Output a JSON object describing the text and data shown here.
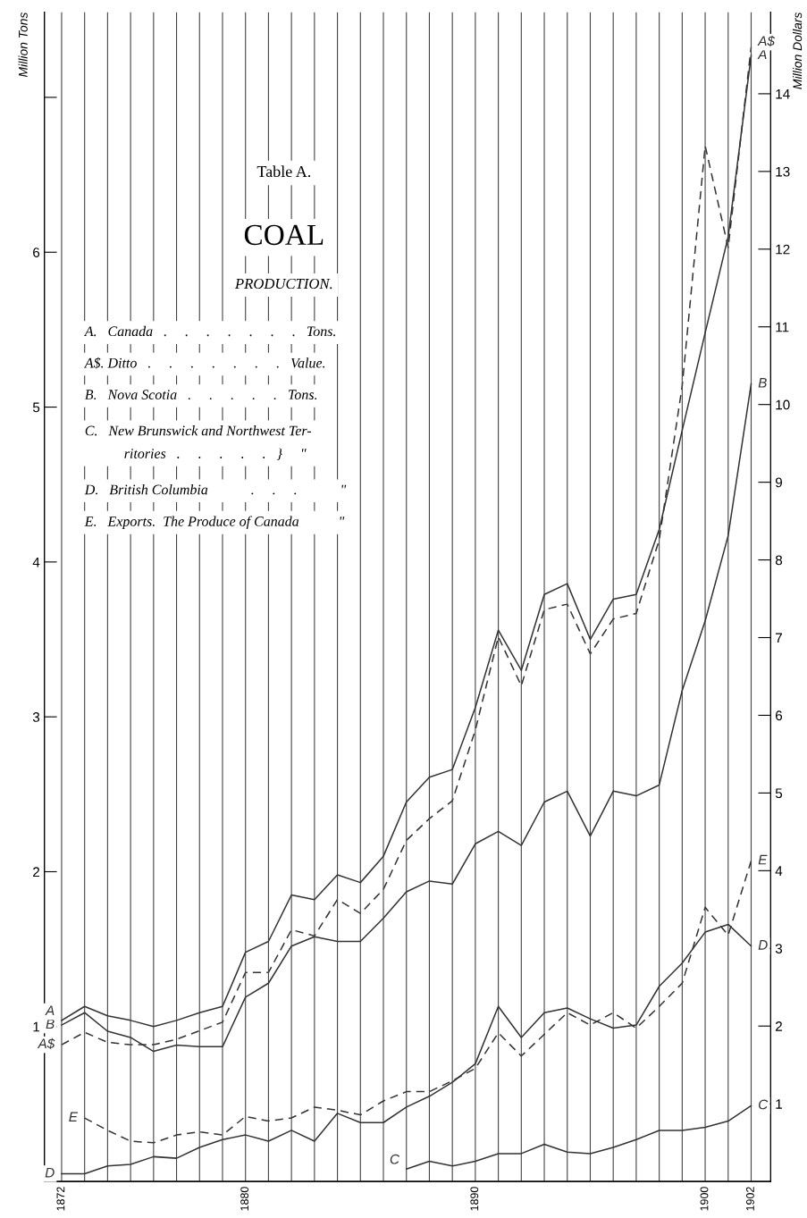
{
  "chart_data": {
    "type": "line",
    "title": "COAL",
    "subtitle": "PRODUCTION.",
    "ylabel": "Million Tons",
    "y2label": "Million Dollars",
    "annotations": [
      "Table A.",
      "A.   Canada   .     .     .     .     .     .     .   Tons.",
      "A$. Ditto   .     .     .     .     .     .     .   Value.",
      "B.   Nova Scotia   .     .     .     .     .   Tons.",
      "C.   New Brunswick and Northwest Ter-\n           ritories   .     .     .     .     .   }     \"",
      "D.   British Columbia            .     .     .            \"",
      "E.   Exports.  The Produce of Canada           \""
    ],
    "x": [
      1872,
      1873,
      1874,
      1875,
      1876,
      1877,
      1878,
      1879,
      1880,
      1881,
      1882,
      1883,
      1884,
      1885,
      1886,
      1887,
      1888,
      1889,
      1890,
      1891,
      1892,
      1893,
      1894,
      1895,
      1896,
      1897,
      1898,
      1899,
      1900,
      1901,
      1902
    ],
    "xlim": [
      1871.25,
      1902.85
    ],
    "xticks": [
      1872,
      {
        "value": 1873,
        "label": null
      },
      {
        "value": 1874,
        "label": null
      },
      {
        "value": 1875,
        "label": null
      },
      {
        "value": 1876,
        "label": null
      },
      {
        "value": 1877,
        "label": null
      },
      {
        "value": 1878,
        "label": null
      },
      {
        "value": 1879,
        "label": null
      },
      1880,
      {
        "value": 1881,
        "label": null
      },
      {
        "value": 1882,
        "label": null
      },
      {
        "value": 1883,
        "label": null
      },
      {
        "value": 1884,
        "label": null
      },
      {
        "value": 1885,
        "label": null
      },
      {
        "value": 1886,
        "label": null
      },
      {
        "value": 1887,
        "label": null
      },
      {
        "value": 1888,
        "label": null
      },
      {
        "value": 1889,
        "label": null
      },
      1890,
      {
        "value": 1891,
        "label": null
      },
      {
        "value": 1892,
        "label": null
      },
      {
        "value": 1893,
        "label": null
      },
      {
        "value": 1894,
        "label": null
      },
      {
        "value": 1895,
        "label": null
      },
      {
        "value": 1896,
        "label": null
      },
      {
        "value": 1897,
        "label": null
      },
      {
        "value": 1898,
        "label": null
      },
      {
        "value": 1899,
        "label": null
      },
      1900,
      {
        "value": 1901,
        "label": null
      },
      1902
    ],
    "ylim": [
      0,
      7.55
    ],
    "yticks": [
      1,
      2,
      3,
      4,
      5,
      6,
      {
        "value": 7,
        "label": null
      }
    ],
    "y2lim": [
      0,
      15.05
    ],
    "y2ticks": [
      1,
      2,
      3,
      4,
      5,
      6,
      7,
      8,
      9,
      10,
      11,
      12,
      13,
      14
    ],
    "grid": "x",
    "legend": false,
    "series": [
      {
        "name": "A",
        "color": "#333333",
        "line_style": "solid",
        "values": [
          1.04,
          1.13,
          1.07,
          1.04,
          1.0,
          1.04,
          1.09,
          1.13,
          1.48,
          1.55,
          1.85,
          1.82,
          1.98,
          1.93,
          2.1,
          2.45,
          2.61,
          2.66,
          3.06,
          3.56,
          3.3,
          3.79,
          3.86,
          3.5,
          3.76,
          3.79,
          4.21,
          4.85,
          5.48,
          6.1,
          7.27
        ]
      },
      {
        "name": "A$",
        "color": "#333333",
        "line_style": "dashed",
        "axis": "y2",
        "values": [
          1.76,
          1.92,
          1.79,
          1.76,
          1.76,
          1.83,
          1.94,
          2.05,
          2.69,
          2.69,
          3.24,
          3.16,
          3.63,
          3.45,
          3.76,
          4.39,
          4.67,
          4.9,
          5.81,
          7.01,
          6.38,
          7.36,
          7.43,
          6.79,
          7.24,
          7.31,
          8.26,
          10.24,
          13.33,
          12.02,
          14.6
        ]
      },
      {
        "name": "B",
        "color": "#333333",
        "line_style": "solid",
        "values": [
          1.01,
          1.09,
          0.97,
          0.93,
          0.84,
          0.88,
          0.87,
          0.87,
          1.19,
          1.28,
          1.52,
          1.58,
          1.55,
          1.55,
          1.7,
          1.87,
          1.94,
          1.92,
          2.18,
          2.26,
          2.17,
          2.45,
          2.52,
          2.23,
          2.52,
          2.49,
          2.56,
          3.17,
          3.62,
          4.17,
          5.15
        ]
      },
      {
        "name": "C",
        "color": "#333333",
        "line_style": "solid",
        "values": [
          null,
          null,
          null,
          null,
          null,
          null,
          null,
          null,
          null,
          null,
          null,
          null,
          null,
          null,
          null,
          0.08,
          0.13,
          0.1,
          0.13,
          0.18,
          0.18,
          0.24,
          0.19,
          0.18,
          0.22,
          0.27,
          0.33,
          0.33,
          0.35,
          0.39,
          0.49
        ]
      },
      {
        "name": "D",
        "color": "#333333",
        "line_style": "solid",
        "values": [
          0.05,
          0.05,
          0.1,
          0.11,
          0.16,
          0.15,
          0.22,
          0.27,
          0.3,
          0.26,
          0.33,
          0.26,
          0.44,
          0.38,
          0.38,
          0.48,
          0.55,
          0.64,
          0.76,
          1.13,
          0.93,
          1.09,
          1.12,
          1.05,
          0.99,
          1.01,
          1.26,
          1.41,
          1.61,
          1.66,
          1.52
        ]
      },
      {
        "name": "E",
        "color": "#333333",
        "line_style": "dashed",
        "values": [
          null,
          0.41,
          0.33,
          0.26,
          0.25,
          0.3,
          0.32,
          0.3,
          0.42,
          0.39,
          0.41,
          0.48,
          0.46,
          0.43,
          0.52,
          0.58,
          0.58,
          0.65,
          0.73,
          0.96,
          0.81,
          0.95,
          1.09,
          1.01,
          1.09,
          0.99,
          1.13,
          1.28,
          1.77,
          1.59,
          2.07
        ]
      }
    ]
  }
}
